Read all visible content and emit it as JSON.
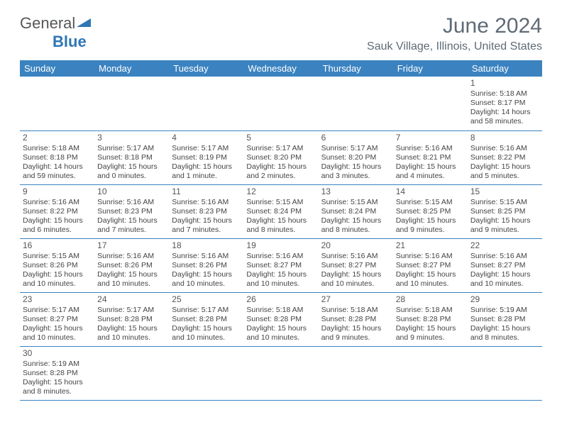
{
  "logo": {
    "text1": "General",
    "text2": "Blue"
  },
  "title": "June 2024",
  "location": "Sauk Village, Illinois, United States",
  "colors": {
    "header_bg": "#3b83c0",
    "header_text": "#ffffff",
    "title_text": "#5f6b76",
    "cell_border": "#3b83c0",
    "body_text": "#444444",
    "logo_gray": "#555859",
    "logo_blue": "#2f76b5",
    "logo_triangle": "#2f76b5"
  },
  "dayHeaders": [
    "Sunday",
    "Monday",
    "Tuesday",
    "Wednesday",
    "Thursday",
    "Friday",
    "Saturday"
  ],
  "startOffset": 6,
  "days": [
    {
      "n": 1,
      "sunrise": "5:18 AM",
      "sunset": "8:17 PM",
      "daylight": "14 hours and 58 minutes."
    },
    {
      "n": 2,
      "sunrise": "5:18 AM",
      "sunset": "8:18 PM",
      "daylight": "14 hours and 59 minutes."
    },
    {
      "n": 3,
      "sunrise": "5:17 AM",
      "sunset": "8:18 PM",
      "daylight": "15 hours and 0 minutes."
    },
    {
      "n": 4,
      "sunrise": "5:17 AM",
      "sunset": "8:19 PM",
      "daylight": "15 hours and 1 minute."
    },
    {
      "n": 5,
      "sunrise": "5:17 AM",
      "sunset": "8:20 PM",
      "daylight": "15 hours and 2 minutes."
    },
    {
      "n": 6,
      "sunrise": "5:17 AM",
      "sunset": "8:20 PM",
      "daylight": "15 hours and 3 minutes."
    },
    {
      "n": 7,
      "sunrise": "5:16 AM",
      "sunset": "8:21 PM",
      "daylight": "15 hours and 4 minutes."
    },
    {
      "n": 8,
      "sunrise": "5:16 AM",
      "sunset": "8:22 PM",
      "daylight": "15 hours and 5 minutes."
    },
    {
      "n": 9,
      "sunrise": "5:16 AM",
      "sunset": "8:22 PM",
      "daylight": "15 hours and 6 minutes."
    },
    {
      "n": 10,
      "sunrise": "5:16 AM",
      "sunset": "8:23 PM",
      "daylight": "15 hours and 7 minutes."
    },
    {
      "n": 11,
      "sunrise": "5:16 AM",
      "sunset": "8:23 PM",
      "daylight": "15 hours and 7 minutes."
    },
    {
      "n": 12,
      "sunrise": "5:15 AM",
      "sunset": "8:24 PM",
      "daylight": "15 hours and 8 minutes."
    },
    {
      "n": 13,
      "sunrise": "5:15 AM",
      "sunset": "8:24 PM",
      "daylight": "15 hours and 8 minutes."
    },
    {
      "n": 14,
      "sunrise": "5:15 AM",
      "sunset": "8:25 PM",
      "daylight": "15 hours and 9 minutes."
    },
    {
      "n": 15,
      "sunrise": "5:15 AM",
      "sunset": "8:25 PM",
      "daylight": "15 hours and 9 minutes."
    },
    {
      "n": 16,
      "sunrise": "5:15 AM",
      "sunset": "8:26 PM",
      "daylight": "15 hours and 10 minutes."
    },
    {
      "n": 17,
      "sunrise": "5:16 AM",
      "sunset": "8:26 PM",
      "daylight": "15 hours and 10 minutes."
    },
    {
      "n": 18,
      "sunrise": "5:16 AM",
      "sunset": "8:26 PM",
      "daylight": "15 hours and 10 minutes."
    },
    {
      "n": 19,
      "sunrise": "5:16 AM",
      "sunset": "8:27 PM",
      "daylight": "15 hours and 10 minutes."
    },
    {
      "n": 20,
      "sunrise": "5:16 AM",
      "sunset": "8:27 PM",
      "daylight": "15 hours and 10 minutes."
    },
    {
      "n": 21,
      "sunrise": "5:16 AM",
      "sunset": "8:27 PM",
      "daylight": "15 hours and 10 minutes."
    },
    {
      "n": 22,
      "sunrise": "5:16 AM",
      "sunset": "8:27 PM",
      "daylight": "15 hours and 10 minutes."
    },
    {
      "n": 23,
      "sunrise": "5:17 AM",
      "sunset": "8:27 PM",
      "daylight": "15 hours and 10 minutes."
    },
    {
      "n": 24,
      "sunrise": "5:17 AM",
      "sunset": "8:28 PM",
      "daylight": "15 hours and 10 minutes."
    },
    {
      "n": 25,
      "sunrise": "5:17 AM",
      "sunset": "8:28 PM",
      "daylight": "15 hours and 10 minutes."
    },
    {
      "n": 26,
      "sunrise": "5:18 AM",
      "sunset": "8:28 PM",
      "daylight": "15 hours and 10 minutes."
    },
    {
      "n": 27,
      "sunrise": "5:18 AM",
      "sunset": "8:28 PM",
      "daylight": "15 hours and 9 minutes."
    },
    {
      "n": 28,
      "sunrise": "5:18 AM",
      "sunset": "8:28 PM",
      "daylight": "15 hours and 9 minutes."
    },
    {
      "n": 29,
      "sunrise": "5:19 AM",
      "sunset": "8:28 PM",
      "daylight": "15 hours and 8 minutes."
    },
    {
      "n": 30,
      "sunrise": "5:19 AM",
      "sunset": "8:28 PM",
      "daylight": "15 hours and 8 minutes."
    }
  ],
  "labels": {
    "sunrise": "Sunrise:",
    "sunset": "Sunset:",
    "daylight": "Daylight:"
  }
}
